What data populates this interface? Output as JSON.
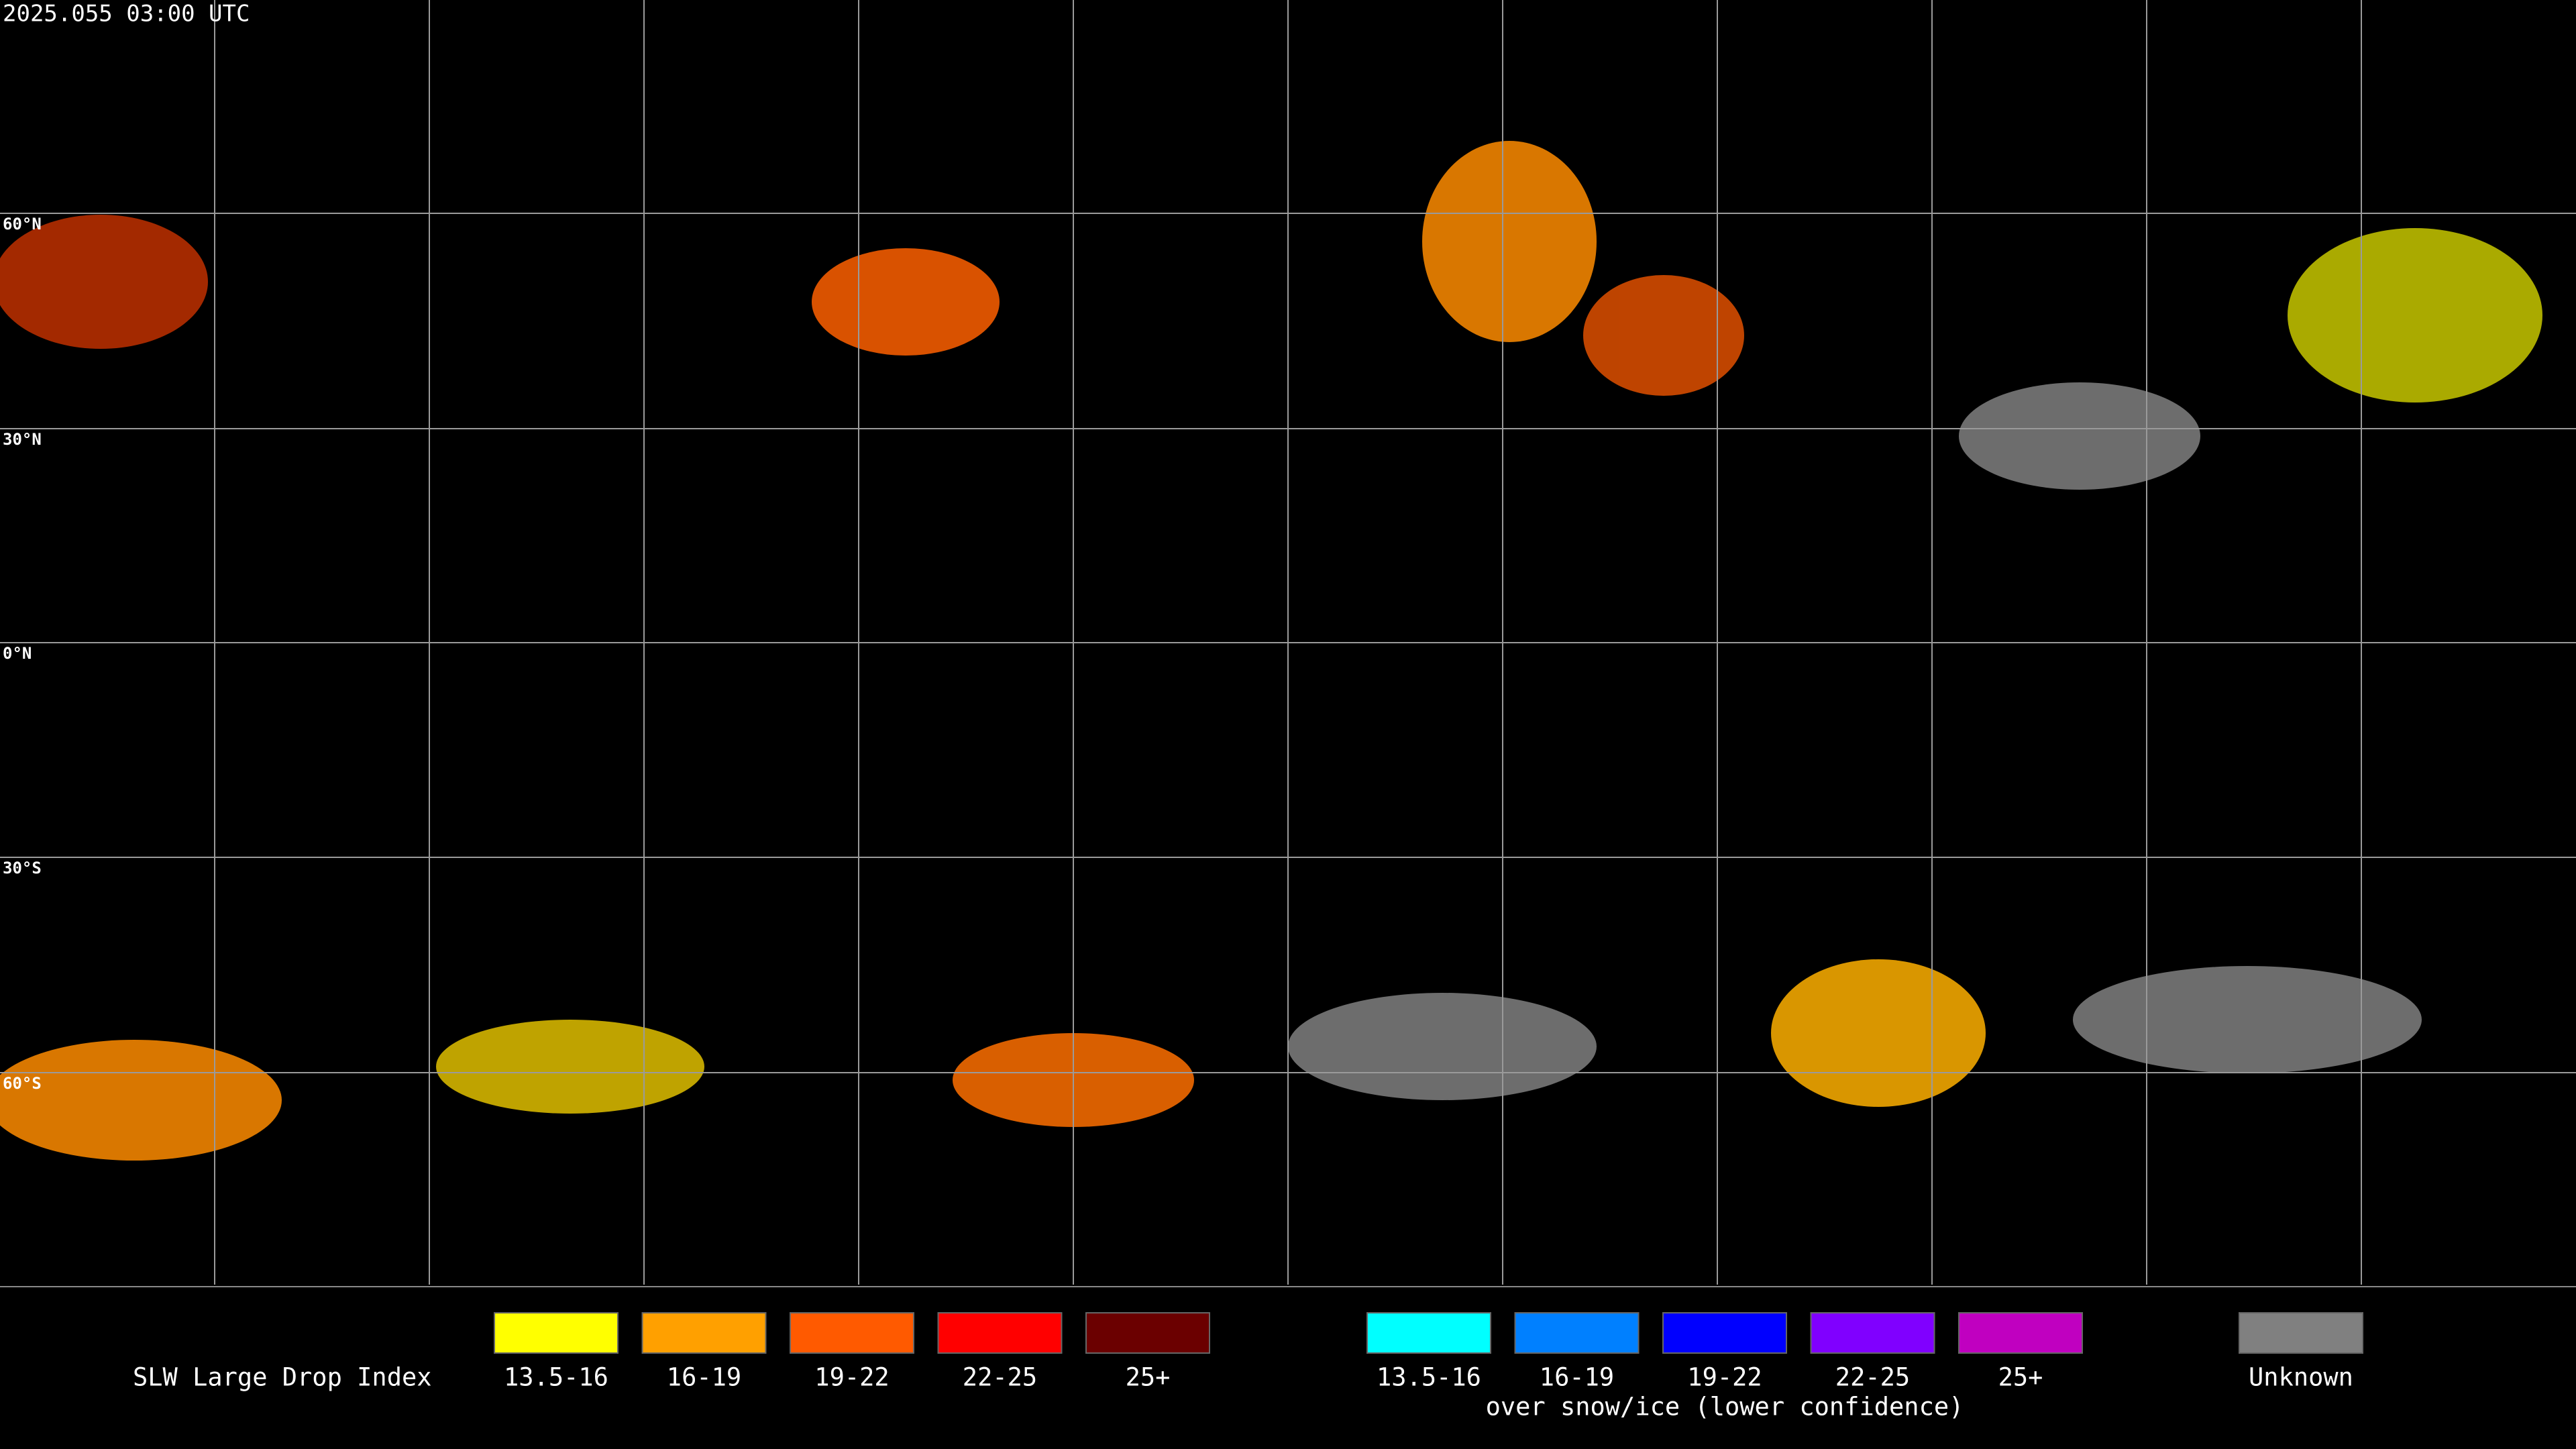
{
  "timestamp": "2025.055 03:00 UTC",
  "latitude_labels": [
    "60°N",
    "30°N",
    "0°N",
    "30°S",
    "60°S"
  ],
  "legend": {
    "title": "SLW Large Drop Index",
    "groups": [
      {
        "items": [
          {
            "label": "13.5-16",
            "color": "#ffff00"
          },
          {
            "label": "16-19",
            "color": "#ffa000"
          },
          {
            "label": "19-22",
            "color": "#ff5a00"
          },
          {
            "label": "22-25",
            "color": "#ff0000"
          },
          {
            "label": "25+",
            "color": "#6b0000"
          }
        ]
      },
      {
        "items": [
          {
            "label": "13.5-16",
            "color": "#00ffff"
          },
          {
            "label": "16-19",
            "color": "#0080ff"
          },
          {
            "label": "19-22",
            "color": "#0000ff"
          },
          {
            "label": "22-25",
            "color": "#8000ff"
          },
          {
            "label": "25+",
            "color": "#c000c0"
          }
        ],
        "caption": "over snow/ice (lower confidence)"
      },
      {
        "items": [
          {
            "label": "Unknown",
            "color": "#808080"
          }
        ]
      }
    ]
  }
}
